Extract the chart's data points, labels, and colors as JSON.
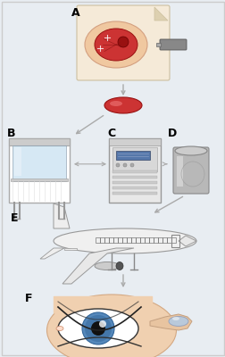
{
  "background_color": "#e8edf2",
  "border_color": "#cccccc",
  "labels": [
    "A",
    "B",
    "C",
    "D",
    "E",
    "F"
  ],
  "label_fontsize": 9,
  "arrow_color": "#aaaaaa",
  "skin_color": "#f0d0b0",
  "skin_dark": "#d4a882",
  "wound_color": "#cc3333",
  "wound_dark": "#881111",
  "device_gray": "#888888",
  "cell_color": "#cc3333",
  "bio_glass": "#c8dff0",
  "bio_frame": "#aaaaaa",
  "inc_color": "#e0e0e0",
  "can_color": "#b0b0b0",
  "plane_body": "#f0f0f0",
  "plane_edge": "#888888",
  "eye_blue": "#5588bb",
  "eye_skin": "#f0d0b0"
}
